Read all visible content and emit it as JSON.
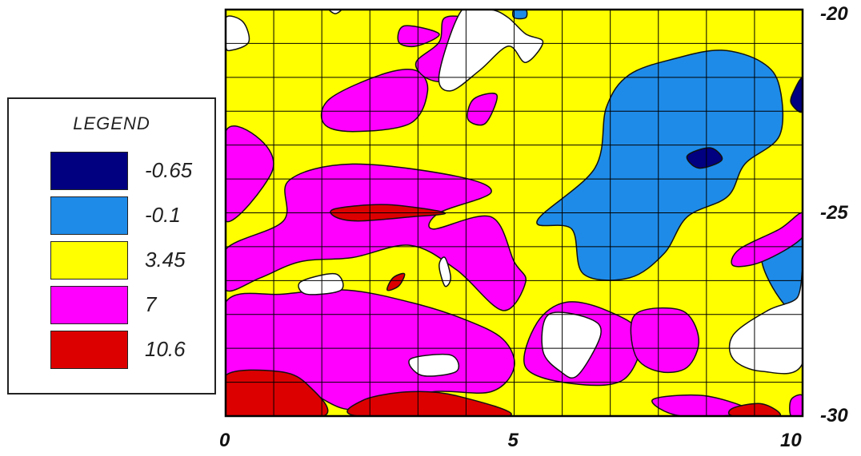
{
  "chart_data": {
    "type": "heatmap",
    "subtype": "filled-contour",
    "title": "",
    "xlabel": "",
    "ylabel": "",
    "xlim": [
      0,
      10
    ],
    "ylim": [
      -30,
      -20
    ],
    "x_ticks": [
      "0",
      "5",
      "10"
    ],
    "y_ticks": [
      "-20",
      "-25",
      "-30"
    ],
    "y_axis_side": "right",
    "grid": true,
    "grid_divisions": {
      "x": 12,
      "y": 12
    },
    "legend": {
      "title": "LEGEND",
      "position": "left",
      "entries": [
        {
          "label": "-0.65",
          "value": -0.65,
          "color": "#000080"
        },
        {
          "label": "-0.1",
          "value": -0.1,
          "color": "#1E8BE8"
        },
        {
          "label": "3.45",
          "value": 3.45,
          "color": "#FFFF00"
        },
        {
          "label": "7",
          "value": 7,
          "color": "#FF00FF"
        },
        {
          "label": "10.6",
          "value": 10.6,
          "color": "#DD0000"
        }
      ]
    },
    "background_color": "#FFFFFF",
    "regions": [
      {
        "level": "3.45",
        "outline": [
          [
            0,
            -20
          ],
          [
            10,
            -20
          ],
          [
            10,
            -30
          ],
          [
            0,
            -30
          ]
        ]
      },
      {
        "level": "-0.1",
        "outline": [
          [
            5.4,
            -25.2
          ],
          [
            6.4,
            -23.9
          ],
          [
            6.6,
            -22.4
          ],
          [
            7.0,
            -21.6
          ],
          [
            7.8,
            -21.2
          ],
          [
            8.6,
            -21.0
          ],
          [
            9.3,
            -21.3
          ],
          [
            9.6,
            -21.9
          ],
          [
            9.6,
            -23.1
          ],
          [
            9.0,
            -23.8
          ],
          [
            8.7,
            -24.6
          ],
          [
            8.0,
            -25.1
          ],
          [
            7.6,
            -26.0
          ],
          [
            7.0,
            -26.6
          ],
          [
            6.2,
            -26.5
          ],
          [
            6.0,
            -25.4
          ]
        ]
      },
      {
        "level": "-0.65",
        "outline": [
          [
            8.0,
            -23.6
          ],
          [
            8.4,
            -23.4
          ],
          [
            8.6,
            -23.7
          ],
          [
            8.2,
            -23.9
          ]
        ]
      },
      {
        "level": "-0.65",
        "outline": [
          [
            9.85,
            -22.0
          ],
          [
            10,
            -21.7
          ],
          [
            10,
            -22.5
          ],
          [
            9.8,
            -22.3
          ]
        ]
      },
      {
        "level": "-0.65",
        "outline": [
          [
            9.85,
            -26.2
          ],
          [
            10,
            -25.8
          ],
          [
            10,
            -26.9
          ],
          [
            9.85,
            -26.6
          ]
        ]
      },
      {
        "level": "-0.1",
        "outline": [
          [
            9.3,
            -26.0
          ],
          [
            10,
            -25.5
          ],
          [
            10,
            -27.4
          ],
          [
            9.6,
            -27.1
          ]
        ]
      },
      {
        "level": "-0.1",
        "outline": [
          [
            5.0,
            -20.0
          ],
          [
            5.2,
            -20.0
          ],
          [
            5.2,
            -20.2
          ],
          [
            5.0,
            -20.2
          ]
        ]
      },
      {
        "level": "-0.1",
        "outline": [
          [
            5.9,
            -27.7
          ],
          [
            6.2,
            -27.7
          ],
          [
            6.2,
            -28.9
          ],
          [
            5.9,
            -28.9
          ]
        ]
      },
      {
        "level": "7",
        "outline": [
          [
            0,
            -23.0
          ],
          [
            0.6,
            -23.2
          ],
          [
            0.8,
            -24.0
          ],
          [
            0,
            -25.2
          ]
        ]
      },
      {
        "level": "7",
        "outline": [
          [
            1.1,
            -24.2
          ],
          [
            2.2,
            -23.8
          ],
          [
            4.0,
            -24.1
          ],
          [
            4.6,
            -24.5
          ],
          [
            3.7,
            -25.0
          ],
          [
            3.6,
            -25.4
          ],
          [
            4.6,
            -25.1
          ],
          [
            5.0,
            -26.2
          ],
          [
            5.2,
            -26.7
          ],
          [
            4.8,
            -27.4
          ],
          [
            4.0,
            -26.4
          ],
          [
            3.2,
            -25.8
          ],
          [
            2.2,
            -26.1
          ],
          [
            1.3,
            -26.2
          ],
          [
            0.6,
            -26.6
          ],
          [
            0,
            -26.9
          ],
          [
            0,
            -25.9
          ],
          [
            1.0,
            -25.2
          ]
        ]
      },
      {
        "level": "7",
        "outline": [
          [
            0,
            -27.2
          ],
          [
            1.0,
            -27.0
          ],
          [
            2.1,
            -26.9
          ],
          [
            3.2,
            -27.2
          ],
          [
            4.1,
            -27.6
          ],
          [
            4.8,
            -28.1
          ],
          [
            5.0,
            -28.8
          ],
          [
            4.6,
            -29.4
          ],
          [
            3.6,
            -29.4
          ],
          [
            2.6,
            -29.7
          ],
          [
            2.0,
            -29.8
          ],
          [
            0.9,
            -29.0
          ],
          [
            0,
            -29.2
          ]
        ]
      },
      {
        "level": "7",
        "outline": [
          [
            2.7,
            -21.6
          ],
          [
            3.3,
            -21.5
          ],
          [
            3.5,
            -22.0
          ],
          [
            3.2,
            -22.8
          ],
          [
            2.2,
            -23.0
          ],
          [
            1.7,
            -22.8
          ],
          [
            1.8,
            -22.2
          ]
        ]
      },
      {
        "level": "7",
        "outline": [
          [
            4.3,
            -22.2
          ],
          [
            4.7,
            -22.1
          ],
          [
            4.5,
            -22.8
          ],
          [
            4.2,
            -22.7
          ]
        ]
      },
      {
        "level": "7",
        "outline": [
          [
            3.8,
            -20.2
          ],
          [
            4.3,
            -20.3
          ],
          [
            4.2,
            -20.9
          ],
          [
            3.9,
            -21.7
          ],
          [
            3.5,
            -21.7
          ],
          [
            3.3,
            -21.3
          ],
          [
            3.7,
            -20.8
          ]
        ]
      },
      {
        "level": "7",
        "outline": [
          [
            3.1,
            -20.4
          ],
          [
            3.7,
            -20.6
          ],
          [
            3.3,
            -20.9
          ],
          [
            3.0,
            -20.8
          ]
        ]
      },
      {
        "level": "7",
        "outline": [
          [
            5.9,
            -27.2
          ],
          [
            6.6,
            -27.4
          ],
          [
            7.2,
            -28.0
          ],
          [
            6.9,
            -29.1
          ],
          [
            6.0,
            -29.2
          ],
          [
            5.2,
            -28.8
          ],
          [
            5.4,
            -27.7
          ]
        ]
      },
      {
        "level": "7",
        "outline": [
          [
            7.1,
            -27.5
          ],
          [
            7.9,
            -27.4
          ],
          [
            8.2,
            -28.1
          ],
          [
            8.0,
            -28.8
          ],
          [
            7.5,
            -28.9
          ],
          [
            7.1,
            -28.5
          ]
        ]
      },
      {
        "level": "7",
        "outline": [
          [
            8.9,
            -25.9
          ],
          [
            9.6,
            -25.4
          ],
          [
            10,
            -25.0
          ],
          [
            10,
            -25.6
          ],
          [
            9.3,
            -26.2
          ],
          [
            8.8,
            -26.3
          ]
        ]
      },
      {
        "level": "7",
        "outline": [
          [
            7.4,
            -29.6
          ],
          [
            8.3,
            -29.5
          ],
          [
            9.1,
            -29.9
          ],
          [
            7.9,
            -30.0
          ]
        ]
      },
      {
        "level": "7",
        "outline": [
          [
            9.8,
            -29.6
          ],
          [
            10,
            -29.5
          ],
          [
            10,
            -30.0
          ],
          [
            9.8,
            -30.0
          ]
        ]
      },
      {
        "level": "10.6",
        "outline": [
          [
            1.9,
            -24.9
          ],
          [
            2.8,
            -24.8
          ],
          [
            3.8,
            -25.0
          ],
          [
            3.2,
            -25.1
          ],
          [
            2.3,
            -25.2
          ],
          [
            1.9,
            -25.1
          ]
        ]
      },
      {
        "level": "10.6",
        "outline": [
          [
            2.9,
            -26.6
          ],
          [
            3.1,
            -26.5
          ],
          [
            3.0,
            -26.8
          ],
          [
            2.8,
            -26.9
          ]
        ]
      },
      {
        "level": "10.6",
        "outline": [
          [
            0,
            -29.0
          ],
          [
            0.9,
            -28.9
          ],
          [
            1.4,
            -29.2
          ],
          [
            1.7,
            -30.0
          ],
          [
            0,
            -30.0
          ]
        ]
      },
      {
        "level": "10.6",
        "outline": [
          [
            2.4,
            -29.6
          ],
          [
            3.2,
            -29.4
          ],
          [
            4.0,
            -29.5
          ],
          [
            4.9,
            -30.0
          ],
          [
            2.3,
            -30.0
          ]
        ]
      },
      {
        "level": "10.6",
        "outline": [
          [
            8.8,
            -29.8
          ],
          [
            9.3,
            -29.7
          ],
          [
            9.6,
            -30.0
          ],
          [
            8.8,
            -30.0
          ]
        ]
      }
    ],
    "white_regions": [
      [
        [
          0,
          -20.2
        ],
        [
          0.3,
          -20.3
        ],
        [
          0.4,
          -20.8
        ],
        [
          0.1,
          -21.0
        ],
        [
          0,
          -20.9
        ]
      ],
      [
        [
          1.8,
          -20.0
        ],
        [
          2.0,
          -20.0
        ],
        [
          1.9,
          -20.1
        ]
      ],
      [
        [
          4.1,
          -20.0
        ],
        [
          4.6,
          -20.0
        ],
        [
          4.9,
          -20.2
        ],
        [
          5.2,
          -20.6
        ],
        [
          5.5,
          -20.8
        ],
        [
          5.2,
          -21.3
        ],
        [
          4.9,
          -20.9
        ],
        [
          4.4,
          -21.5
        ],
        [
          3.9,
          -22.0
        ],
        [
          3.7,
          -21.6
        ]
      ],
      [
        [
          1.3,
          -26.7
        ],
        [
          1.9,
          -26.5
        ],
        [
          2.0,
          -26.9
        ],
        [
          1.4,
          -27.0
        ]
      ],
      [
        [
          3.7,
          -26.3
        ],
        [
          3.8,
          -26.1
        ],
        [
          3.9,
          -26.6
        ],
        [
          3.8,
          -26.8
        ]
      ],
      [
        [
          3.2,
          -28.6
        ],
        [
          3.9,
          -28.5
        ],
        [
          4.0,
          -28.9
        ],
        [
          3.4,
          -29.0
        ]
      ],
      [
        [
          5.6,
          -27.5
        ],
        [
          6.3,
          -27.6
        ],
        [
          6.5,
          -28.0
        ],
        [
          6.1,
          -29.0
        ],
        [
          5.8,
          -28.9
        ],
        [
          5.5,
          -28.4
        ]
      ],
      [
        [
          8.8,
          -28.0
        ],
        [
          9.4,
          -27.4
        ],
        [
          9.9,
          -27.1
        ],
        [
          10,
          -26.5
        ],
        [
          10,
          -28.7
        ],
        [
          9.3,
          -28.9
        ],
        [
          8.8,
          -28.6
        ]
      ]
    ]
  }
}
